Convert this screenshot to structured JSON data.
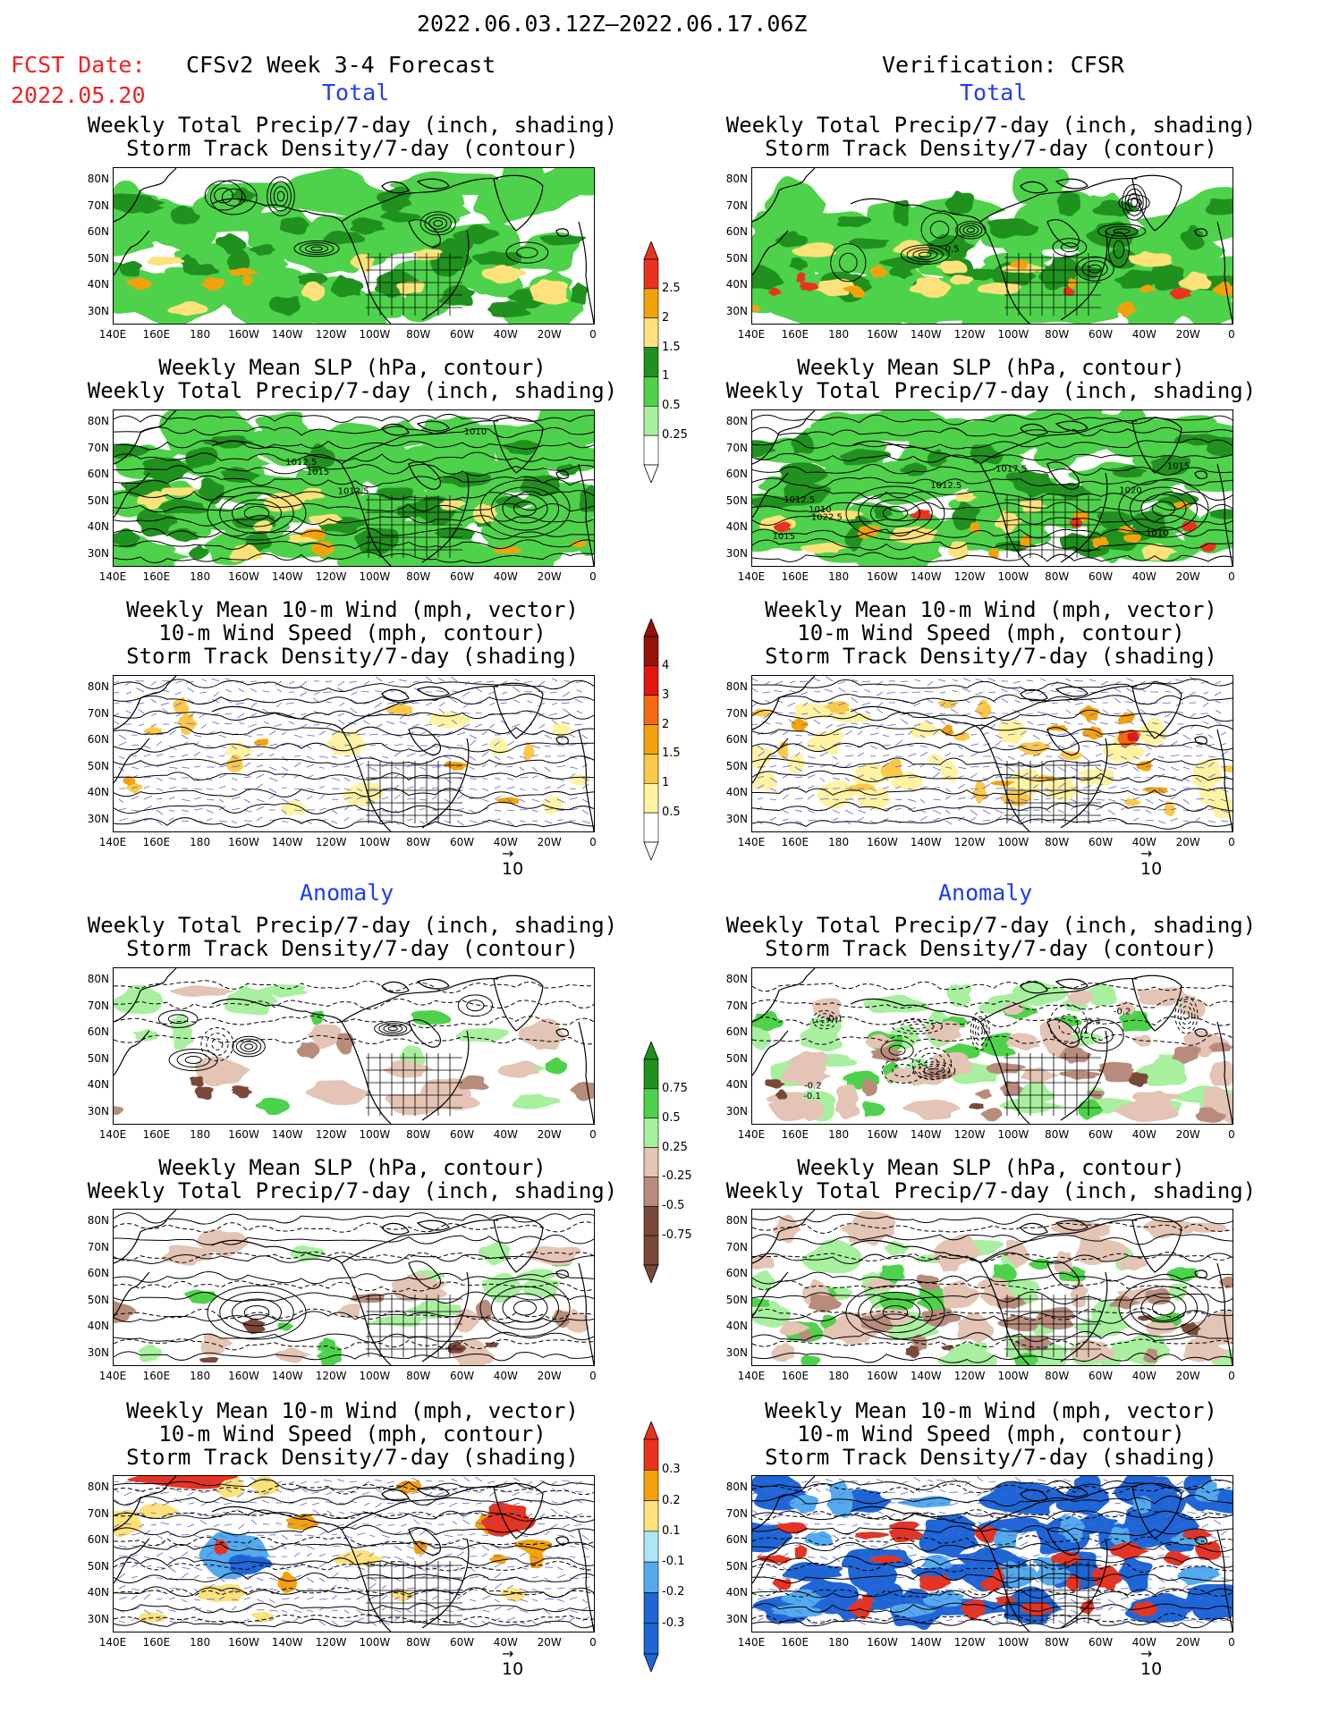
{
  "header": {
    "period": "2022.06.03.12Z—2022.06.17.06Z",
    "fcst_label": "FCST Date:",
    "fcst_date": "2022.05.20",
    "model": "CFSv2 Week 3-4 Forecast",
    "verification": "Verification: CFSR"
  },
  "sections": {
    "total": "Total",
    "anomaly": "Anomaly"
  },
  "titles": {
    "precip_storm": [
      "Weekly Total Precip/7-day (inch, shading)",
      "Storm Track Density/7-day (contour)"
    ],
    "slp_precip": [
      "Weekly Mean SLP (hPa, contour)",
      "Weekly Total Precip/7-day (inch, shading)"
    ],
    "wind_storm": [
      "Weekly Mean 10-m Wind (mph, vector)",
      "10-m Wind Speed (mph, contour)",
      "Storm Track Density/7-day (shading)"
    ]
  },
  "axes": {
    "lat_labels": [
      "80N",
      "70N",
      "60N",
      "50N",
      "40N",
      "30N"
    ],
    "lon_labels": [
      "140E",
      "160E",
      "180",
      "160W",
      "140W",
      "120W",
      "100W",
      "80W",
      "60W",
      "40W",
      "20W",
      "0"
    ]
  },
  "vector_ref": "10",
  "colorbars": {
    "precip_total": {
      "labels": [
        "2.5",
        "2",
        "1.5",
        "1",
        "0.5",
        "0.25"
      ],
      "colors": [
        "#e8331e",
        "#f4a20c",
        "#fde17a",
        "#20911e",
        "#4fd24b",
        "#a8f0a0"
      ]
    },
    "storm_total": {
      "labels": [
        "4",
        "3",
        "2",
        "1.5",
        "1",
        "0.5"
      ],
      "colors": [
        "#961108",
        "#e0160f",
        "#f36a12",
        "#f4a20c",
        "#fbc94a",
        "#fff3a2"
      ]
    },
    "precip_anom": {
      "labels": [
        "0.75",
        "0.5",
        "0.25",
        "-0.25",
        "-0.5",
        "-0.75"
      ],
      "colors": [
        "#20911e",
        "#4fd24b",
        "#a8f0a0",
        "#e4c4b4",
        "#b88c7c",
        "#7b4939"
      ]
    },
    "storm_anom": {
      "labels": [
        "0.3",
        "0.2",
        "0.1",
        "-0.1",
        "-0.2",
        "-0.3"
      ],
      "colors": [
        "#e8331e",
        "#f4a20c",
        "#fde17a",
        "#aee6f8",
        "#53abee",
        "#1e66d6"
      ]
    }
  },
  "contour_labels": {
    "left_slp": [
      "1012.5",
      "1015",
      "1012.5",
      "1010"
    ],
    "right_slp": [
      "1020",
      "1022.5",
      "1017.5",
      "1012.5",
      "1010",
      "1015",
      "1015",
      "1010",
      "1012.5"
    ],
    "right_storm": [
      "0.5"
    ],
    "right_anom_storm": [
      "-0.2",
      "-0.3",
      "-0.1",
      "-0.2",
      "0.1",
      "-0.1"
    ]
  }
}
